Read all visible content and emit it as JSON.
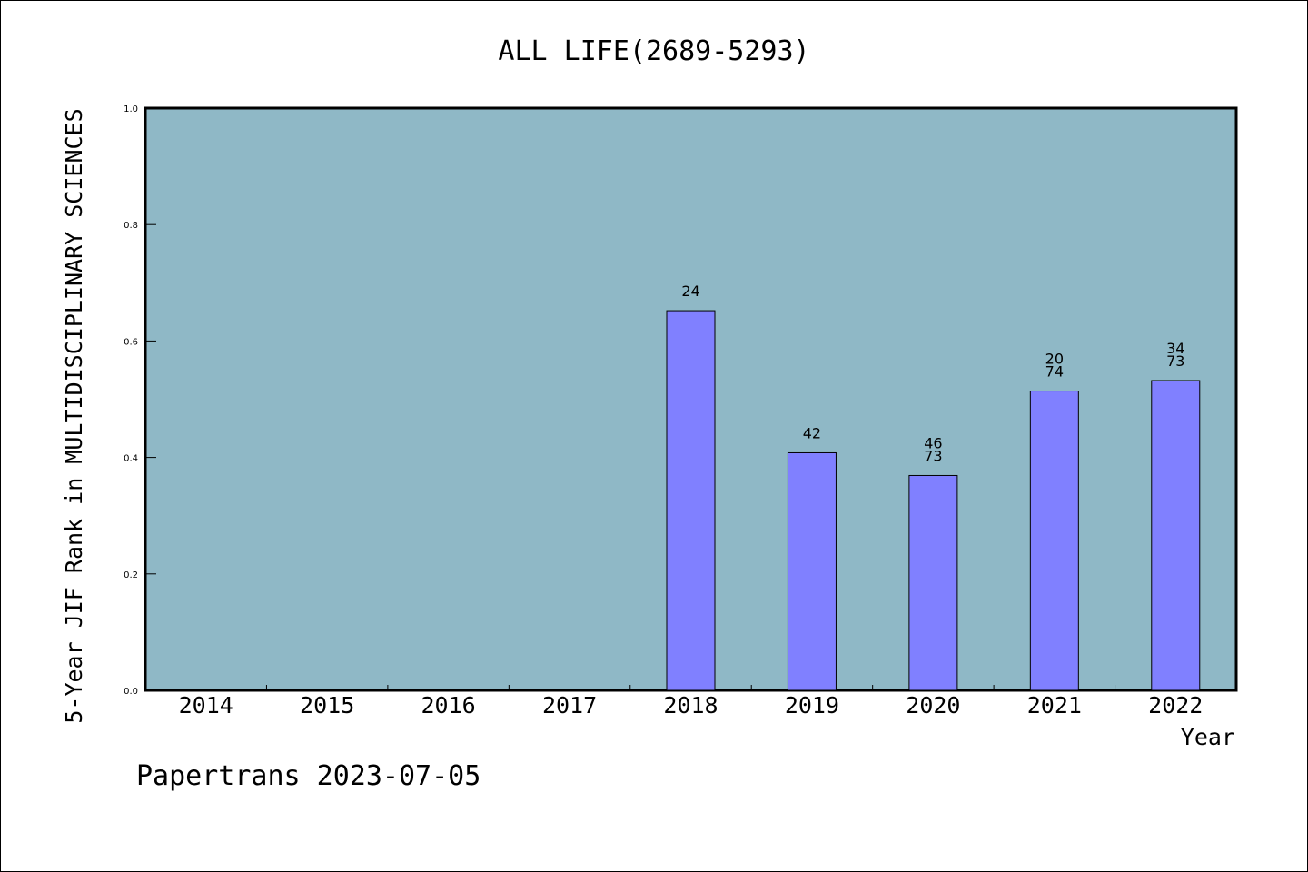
{
  "chart_data": {
    "type": "bar",
    "title": "ALL LIFE(2689-5293)",
    "ylabel": "5-Year JIF Rank in MULTIDISCIPLINARY SCIENCES",
    "xlabel": "Year",
    "footer": "Papertrans 2023-07-05",
    "ylim": [
      0,
      1.0
    ],
    "yticks": [
      "0.0",
      "0.2",
      "0.4",
      "0.6",
      "0.8",
      "1.0"
    ],
    "ytick_values": [
      0.0,
      0.2,
      0.4,
      0.6,
      0.8,
      1.0
    ],
    "categories": [
      "2014",
      "2015",
      "2016",
      "2017",
      "2018",
      "2019",
      "2020",
      "2021",
      "2022"
    ],
    "values": [
      null,
      null,
      null,
      null,
      0.652,
      0.408,
      0.369,
      0.514,
      0.532
    ],
    "data_labels": [
      null,
      null,
      null,
      null,
      [
        "24"
      ],
      [
        "42"
      ],
      [
        "46",
        "73"
      ],
      [
        "20",
        "74"
      ],
      [
        "34",
        "73"
      ]
    ],
    "grid": false,
    "legend": "none",
    "colors": {
      "plot_background": "#8fb8c6",
      "bar_fill": "#8080ff",
      "bar_stroke": "#000000",
      "frame": "#000000"
    }
  }
}
